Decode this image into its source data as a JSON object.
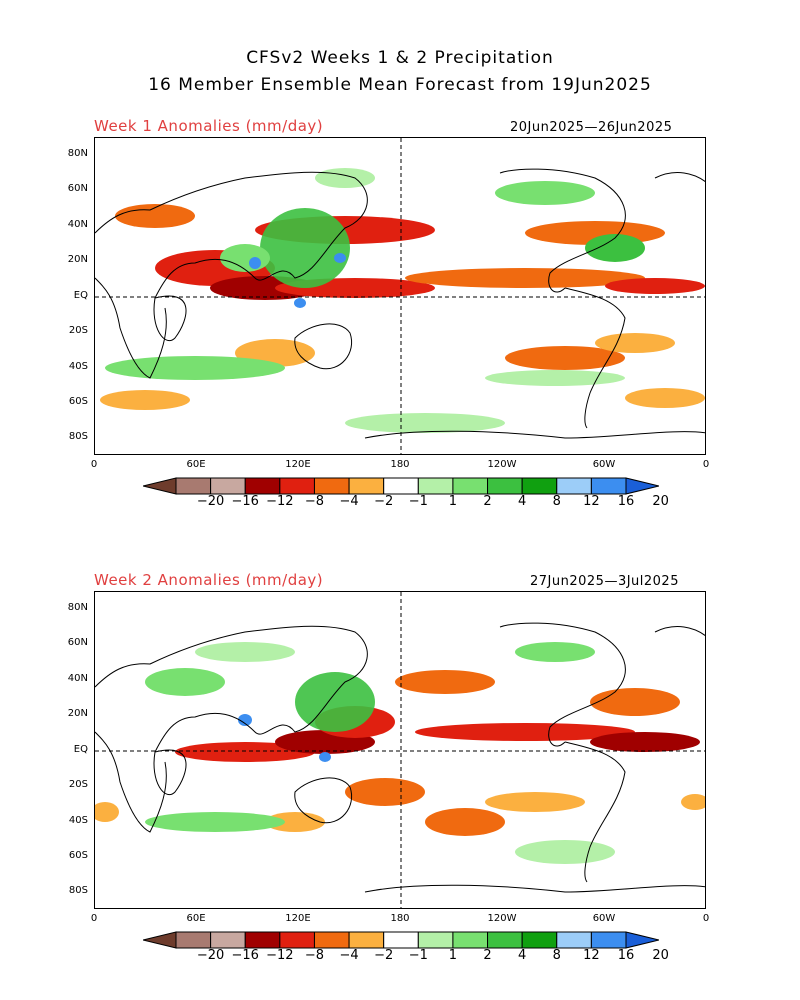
{
  "header": {
    "title_line1": "CFSv2 Weeks 1 & 2 Precipitation",
    "title_line2": "16 Member Ensemble Mean Forecast from 19Jun2025"
  },
  "panels": [
    {
      "label": "Week 1 Anomalies (mm/day)",
      "date_range": "20Jun2025—26Jun2025"
    },
    {
      "label": "Week 2 Anomalies (mm/day)",
      "date_range": "27Jun2025—3Jul2025"
    }
  ],
  "axes": {
    "lat_labels": [
      "80N",
      "60N",
      "40N",
      "20N",
      "EQ",
      "20S",
      "40S",
      "60S",
      "80S"
    ],
    "lon_labels": [
      "0",
      "60E",
      "120E",
      "180",
      "120W",
      "60W",
      "0"
    ]
  },
  "colorbar": {
    "colors": [
      "#6e3c2c",
      "#a87a70",
      "#c8a8a0",
      "#a00000",
      "#e02010",
      "#f06a10",
      "#fbb040",
      "#ffffff",
      "#b4f0a8",
      "#78e070",
      "#3cc040",
      "#10a010",
      "#9ccdf8",
      "#3c8ef0",
      "#1a5fd8"
    ],
    "labels": [
      "−20",
      "−16",
      "−12",
      "−8",
      "−4",
      "−2",
      "−1",
      "1",
      "2",
      "4",
      "8",
      "12",
      "16",
      "20"
    ]
  }
}
